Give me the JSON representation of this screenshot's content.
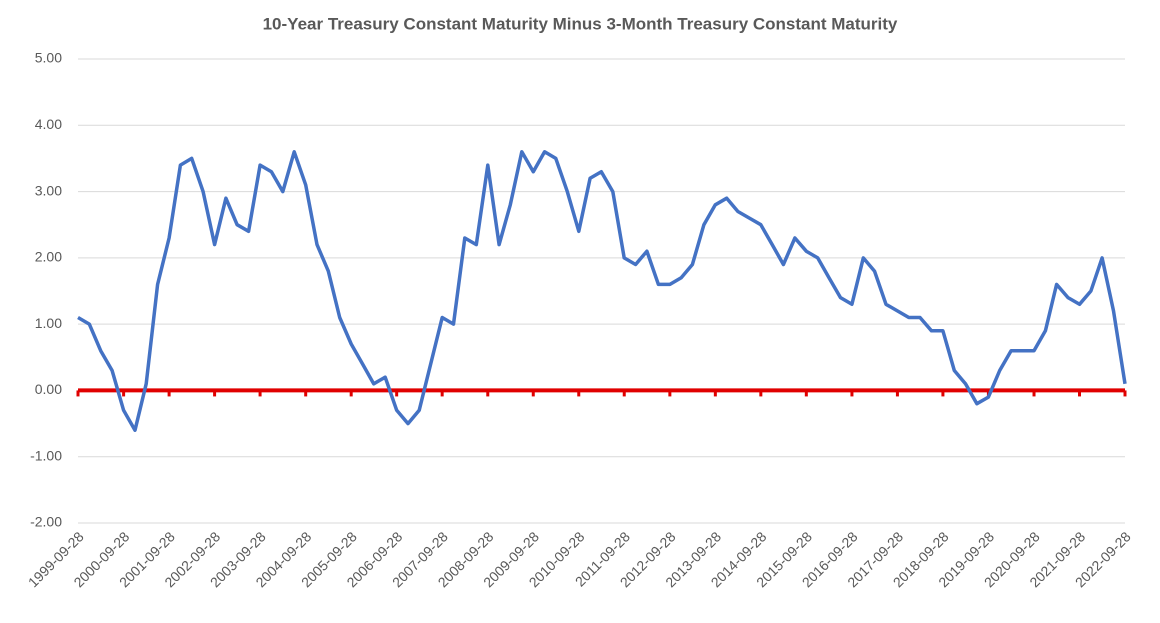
{
  "chart_data": {
    "type": "line",
    "title": "10-Year Treasury Constant Maturity Minus 3-Month Treasury Constant Maturity",
    "x": [
      "1999-09-28",
      "1999-12-28",
      "2000-03-28",
      "2000-06-28",
      "2000-09-28",
      "2000-12-28",
      "2001-03-28",
      "2001-06-28",
      "2001-09-28",
      "2001-12-28",
      "2002-03-28",
      "2002-06-28",
      "2002-09-28",
      "2002-12-28",
      "2003-03-28",
      "2003-06-28",
      "2003-09-28",
      "2003-12-28",
      "2004-03-28",
      "2004-06-28",
      "2004-09-28",
      "2004-12-28",
      "2005-03-28",
      "2005-06-28",
      "2005-09-28",
      "2005-12-28",
      "2006-03-28",
      "2006-06-28",
      "2006-09-28",
      "2006-12-28",
      "2007-03-28",
      "2007-06-28",
      "2007-09-28",
      "2007-12-28",
      "2008-03-28",
      "2008-06-28",
      "2008-09-28",
      "2008-12-28",
      "2009-03-28",
      "2009-06-28",
      "2009-09-28",
      "2009-12-28",
      "2010-03-28",
      "2010-06-28",
      "2010-09-28",
      "2010-12-28",
      "2011-03-28",
      "2011-06-28",
      "2011-09-28",
      "2011-12-28",
      "2012-03-28",
      "2012-06-28",
      "2012-09-28",
      "2012-12-28",
      "2013-03-28",
      "2013-06-28",
      "2013-09-28",
      "2013-12-28",
      "2014-03-28",
      "2014-06-28",
      "2014-09-28",
      "2014-12-28",
      "2015-03-28",
      "2015-06-28",
      "2015-09-28",
      "2015-12-28",
      "2016-03-28",
      "2016-06-28",
      "2016-09-28",
      "2016-12-28",
      "2017-03-28",
      "2017-06-28",
      "2017-09-28",
      "2017-12-28",
      "2018-03-28",
      "2018-06-28",
      "2018-09-28",
      "2018-12-28",
      "2019-03-28",
      "2019-06-28",
      "2019-09-28",
      "2019-12-28",
      "2020-03-28",
      "2020-06-28",
      "2020-09-28",
      "2020-12-28",
      "2021-03-28",
      "2021-06-28",
      "2021-09-28",
      "2021-12-28",
      "2022-03-28",
      "2022-06-28",
      "2022-09-28"
    ],
    "series": [
      {
        "color": "#4472c4",
        "values": [
          1.1,
          1.0,
          0.6,
          0.3,
          -0.3,
          -0.6,
          0.1,
          1.6,
          2.3,
          3.4,
          3.5,
          3.0,
          2.2,
          2.9,
          2.5,
          2.4,
          3.4,
          3.3,
          3.0,
          3.6,
          3.1,
          2.2,
          1.8,
          1.1,
          0.7,
          0.4,
          0.1,
          0.2,
          -0.3,
          -0.5,
          -0.3,
          0.4,
          1.1,
          1.0,
          2.3,
          2.2,
          3.4,
          2.2,
          2.8,
          3.6,
          3.3,
          3.6,
          3.5,
          3.0,
          2.4,
          3.2,
          3.3,
          3.0,
          2.0,
          1.9,
          2.1,
          1.6,
          1.6,
          1.7,
          1.9,
          2.5,
          2.8,
          2.9,
          2.7,
          2.6,
          2.5,
          2.2,
          1.9,
          2.3,
          2.1,
          2.0,
          1.7,
          1.4,
          1.3,
          2.0,
          1.8,
          1.3,
          1.2,
          1.1,
          1.1,
          0.9,
          0.9,
          0.3,
          0.1,
          -0.2,
          -0.1,
          0.3,
          0.6,
          0.6,
          0.6,
          0.9,
          1.6,
          1.4,
          1.3,
          1.5,
          2.0,
          1.2,
          0.1
        ]
      }
    ],
    "xlim": [
      "1999-09-28",
      "2022-09-28"
    ],
    "xticks": [
      "1999-09-28",
      "2000-09-28",
      "2001-09-28",
      "2002-09-28",
      "2003-09-28",
      "2004-09-28",
      "2005-09-28",
      "2006-09-28",
      "2007-09-28",
      "2008-09-28",
      "2009-09-28",
      "2010-09-28",
      "2011-09-28",
      "2012-09-28",
      "2013-09-28",
      "2014-09-28",
      "2015-09-28",
      "2016-09-28",
      "2017-09-28",
      "2018-09-28",
      "2019-09-28",
      "2020-09-28",
      "2021-09-28",
      "2022-09-28"
    ],
    "ylim": [
      -2,
      5
    ],
    "yticks": [
      {
        "value": -2,
        "label": "-2.00"
      },
      {
        "value": -1,
        "label": "-1.00"
      },
      {
        "value": 0,
        "label": "0.00"
      },
      {
        "value": 1,
        "label": "1.00"
      },
      {
        "value": 2,
        "label": "2.00"
      },
      {
        "value": 3,
        "label": "3.00"
      },
      {
        "value": 4,
        "label": "4.00"
      },
      {
        "value": 5,
        "label": "5.00"
      }
    ],
    "grid": true,
    "axis_color": "#e00000"
  }
}
